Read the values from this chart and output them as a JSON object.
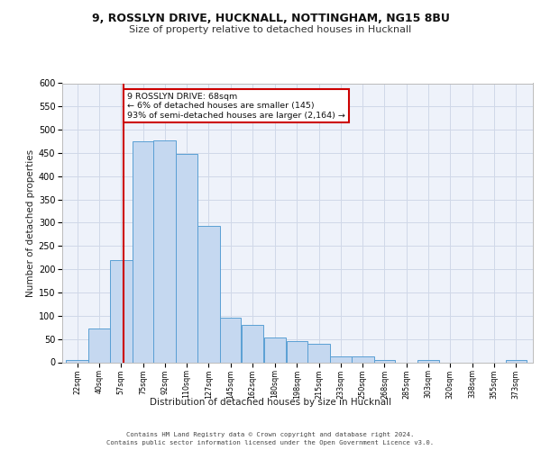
{
  "title_line1": "9, ROSSLYN DRIVE, HUCKNALL, NOTTINGHAM, NG15 8BU",
  "title_line2": "Size of property relative to detached houses in Hucknall",
  "xlabel": "Distribution of detached houses by size in Hucknall",
  "ylabel": "Number of detached properties",
  "bin_labels": [
    "22sqm",
    "40sqm",
    "57sqm",
    "75sqm",
    "92sqm",
    "110sqm",
    "127sqm",
    "145sqm",
    "162sqm",
    "180sqm",
    "198sqm",
    "215sqm",
    "233sqm",
    "250sqm",
    "268sqm",
    "285sqm",
    "303sqm",
    "320sqm",
    "338sqm",
    "355sqm",
    "373sqm"
  ],
  "bar_values": [
    5,
    72,
    219,
    475,
    478,
    449,
    294,
    96,
    80,
    53,
    46,
    40,
    12,
    12,
    5,
    0,
    5,
    0,
    0,
    0,
    5
  ],
  "bin_edges": [
    22,
    40,
    57,
    75,
    92,
    110,
    127,
    145,
    162,
    180,
    198,
    215,
    233,
    250,
    268,
    285,
    303,
    320,
    338,
    355,
    373,
    390
  ],
  "bar_color": "#c5d8f0",
  "bar_edge_color": "#5a9fd4",
  "grid_color": "#d0d8e8",
  "background_color": "#eef2fa",
  "vline_x": 68,
  "vline_color": "#cc0000",
  "annotation_text": "9 ROSSLYN DRIVE: 68sqm\n← 6% of detached houses are smaller (145)\n93% of semi-detached houses are larger (2,164) →",
  "annotation_box_color": "#cc0000",
  "ylim": [
    0,
    600
  ],
  "yticks": [
    0,
    50,
    100,
    150,
    200,
    250,
    300,
    350,
    400,
    450,
    500,
    550,
    600
  ],
  "footer_line1": "Contains HM Land Registry data © Crown copyright and database right 2024.",
  "footer_line2": "Contains public sector information licensed under the Open Government Licence v3.0."
}
